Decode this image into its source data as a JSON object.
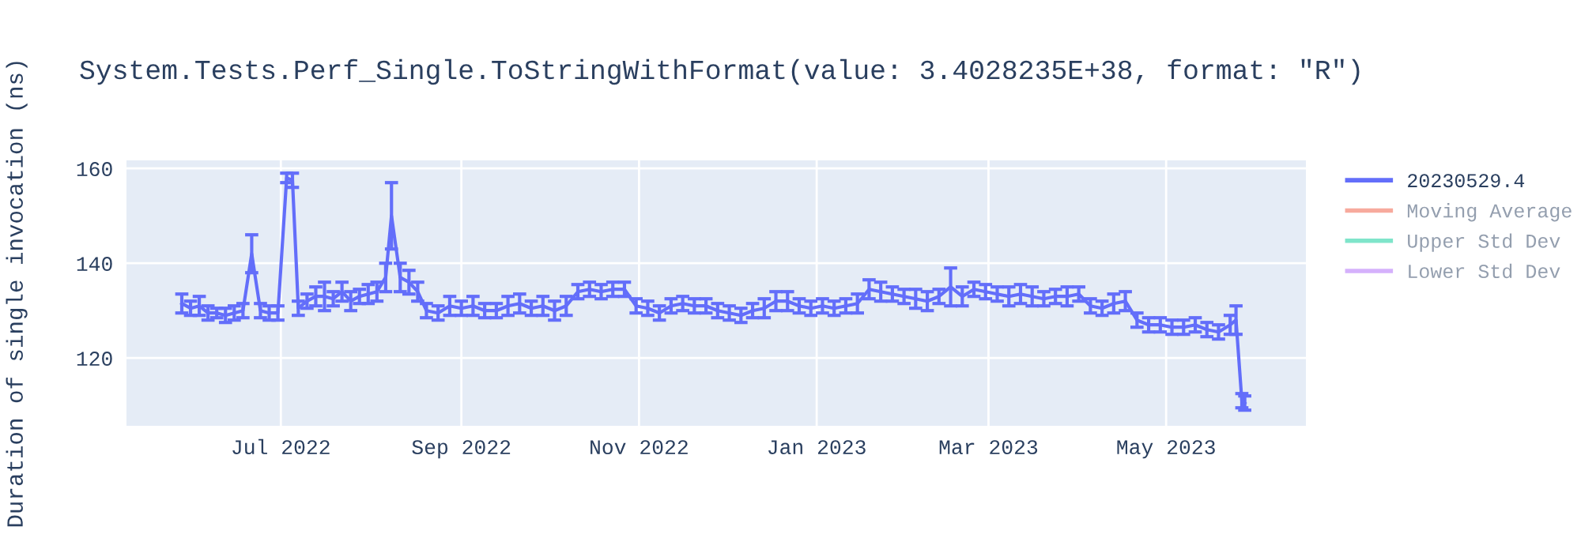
{
  "chart_data": {
    "type": "line",
    "title": "System.Tests.Perf_Single.ToStringWithFormat(value: 3.4028235E+38, format: \"R\")",
    "ylabel": "Duration of single invocation (ns)",
    "x": [
      "2022-05-28",
      "2022-05-31",
      "2022-06-03",
      "2022-06-06",
      "2022-06-09",
      "2022-06-12",
      "2022-06-15",
      "2022-06-18",
      "2022-06-21",
      "2022-06-24",
      "2022-06-27",
      "2022-06-30",
      "2022-07-03",
      "2022-07-05",
      "2022-07-07",
      "2022-07-10",
      "2022-07-13",
      "2022-07-16",
      "2022-07-19",
      "2022-07-22",
      "2022-07-25",
      "2022-07-28",
      "2022-07-31",
      "2022-08-03",
      "2022-08-06",
      "2022-08-08",
      "2022-08-11",
      "2022-08-14",
      "2022-08-17",
      "2022-08-20",
      "2022-08-24",
      "2022-08-28",
      "2022-09-01",
      "2022-09-05",
      "2022-09-09",
      "2022-09-13",
      "2022-09-17",
      "2022-09-21",
      "2022-09-25",
      "2022-09-29",
      "2022-10-03",
      "2022-10-07",
      "2022-10-11",
      "2022-10-15",
      "2022-10-19",
      "2022-10-23",
      "2022-10-27",
      "2022-10-31",
      "2022-11-04",
      "2022-11-08",
      "2022-11-12",
      "2022-11-16",
      "2022-11-20",
      "2022-11-24",
      "2022-11-28",
      "2022-12-02",
      "2022-12-06",
      "2022-12-10",
      "2022-12-14",
      "2022-12-18",
      "2022-12-22",
      "2022-12-26",
      "2022-12-30",
      "2023-01-03",
      "2023-01-07",
      "2023-01-11",
      "2023-01-15",
      "2023-01-19",
      "2023-01-23",
      "2023-01-27",
      "2023-01-31",
      "2023-02-04",
      "2023-02-08",
      "2023-02-12",
      "2023-02-16",
      "2023-02-20",
      "2023-02-24",
      "2023-02-28",
      "2023-03-04",
      "2023-03-08",
      "2023-03-12",
      "2023-03-16",
      "2023-03-20",
      "2023-03-24",
      "2023-03-28",
      "2023-04-01",
      "2023-04-05",
      "2023-04-09",
      "2023-04-13",
      "2023-04-17",
      "2023-04-21",
      "2023-04-25",
      "2023-04-29",
      "2023-05-03",
      "2023-05-07",
      "2023-05-11",
      "2023-05-15",
      "2023-05-19",
      "2023-05-23",
      "2023-05-25",
      "2023-05-27",
      "2023-05-28"
    ],
    "series": [
      {
        "name": "20230529.4",
        "color": "#636efa",
        "values": [
          131.5,
          130.5,
          131,
          129.5,
          129.5,
          129,
          129.5,
          130,
          142,
          130,
          129.5,
          129.5,
          158,
          157.5,
          130.5,
          132,
          133,
          133,
          132.5,
          134,
          132,
          133,
          133.5,
          134,
          137,
          150,
          137,
          136,
          134,
          130,
          129.5,
          131,
          130.5,
          131,
          130,
          130,
          131,
          131.5,
          130.5,
          131,
          130,
          131,
          134,
          134.5,
          134,
          134.5,
          134.5,
          131,
          130.5,
          129.5,
          131,
          131.5,
          131,
          131,
          130,
          129.5,
          129,
          130,
          130.5,
          132,
          132,
          131,
          130.5,
          131,
          130.5,
          131,
          131.5,
          134.5,
          134,
          133.5,
          133,
          132.5,
          132,
          133,
          135,
          133,
          134.5,
          134,
          133.5,
          133,
          133.5,
          133,
          132.5,
          133,
          133,
          133.5,
          131,
          130.5,
          131.5,
          132,
          128,
          127,
          127,
          126.5,
          126.5,
          127,
          126,
          125.5,
          127,
          128,
          111,
          110.5
        ],
        "errors": [
          2,
          1.5,
          2,
          1.5,
          1,
          1.5,
          1.5,
          1.5,
          4,
          1.5,
          1.5,
          1.5,
          1,
          1.5,
          1.5,
          1.5,
          2,
          3,
          1.5,
          2,
          2,
          1.5,
          2,
          2,
          3,
          7,
          3,
          2.5,
          2,
          1.5,
          1.5,
          2,
          1.5,
          2,
          1.5,
          1.5,
          2,
          2,
          1.5,
          2,
          2,
          2,
          1.5,
          1.5,
          1.5,
          1.5,
          1.5,
          1.5,
          1.5,
          1.5,
          1.5,
          1.5,
          1.5,
          1.5,
          1.5,
          1.5,
          1.5,
          1.5,
          2,
          2,
          2,
          1.5,
          1.5,
          1.5,
          1.5,
          1.5,
          2,
          2,
          2,
          1.5,
          1.5,
          2,
          2,
          1.5,
          4,
          2,
          1.5,
          1.5,
          1.5,
          2,
          2,
          2,
          1.5,
          1.5,
          2,
          1.5,
          1.5,
          1.5,
          2,
          2,
          1.5,
          1.5,
          1.5,
          1.5,
          1.5,
          1.5,
          1.5,
          1.5,
          2,
          3,
          1.5,
          1.5
        ]
      },
      {
        "name": "Moving Average",
        "color": "#ef553b",
        "values": [
          null,
          null,
          null,
          null,
          null,
          null,
          null,
          null,
          null,
          null,
          null,
          null,
          null,
          null,
          null,
          null,
          null,
          null,
          null,
          null,
          null,
          null,
          null,
          null,
          null,
          null,
          null,
          null,
          null,
          null,
          null,
          null,
          null,
          null,
          null,
          null,
          null,
          null,
          null,
          null,
          null,
          null,
          null,
          null,
          null,
          null,
          null,
          null,
          null,
          null,
          null,
          null,
          null,
          null,
          null,
          null,
          null,
          null,
          null,
          null,
          null,
          null,
          null,
          null,
          null,
          null,
          null,
          null,
          null,
          null,
          null,
          null,
          null,
          null,
          null,
          null,
          null,
          null,
          null,
          null,
          null,
          null,
          null,
          null,
          null,
          null,
          null,
          null,
          null,
          null,
          null,
          null,
          null,
          null,
          null,
          null,
          null,
          null,
          null,
          null,
          null,
          null
        ]
      },
      {
        "name": "Upper Std Dev",
        "color": "#00cc96",
        "values": [
          null,
          null,
          null,
          null,
          null,
          null,
          null,
          null,
          null,
          null,
          null,
          null,
          null,
          null,
          null,
          null,
          null,
          null,
          null,
          null,
          null,
          null,
          null,
          null,
          null,
          null,
          null,
          null,
          null,
          null,
          null,
          null,
          null,
          null,
          null,
          null,
          null,
          null,
          null,
          null,
          null,
          null,
          null,
          null,
          null,
          null,
          null,
          null,
          null,
          null,
          null,
          null,
          null,
          null,
          null,
          null,
          null,
          null,
          null,
          null,
          null,
          null,
          null,
          null,
          null,
          null,
          null,
          null,
          null,
          null,
          null,
          null,
          null,
          null,
          null,
          null,
          null,
          null,
          null,
          null,
          null,
          null,
          null,
          null,
          null,
          null,
          null,
          null,
          null,
          null,
          null,
          null,
          null,
          null,
          null,
          null,
          null,
          null,
          null,
          null,
          null,
          null
        ]
      },
      {
        "name": "Lower Std Dev",
        "color": "#ab63fa",
        "values": [
          null,
          null,
          null,
          null,
          null,
          null,
          null,
          null,
          null,
          null,
          null,
          null,
          null,
          null,
          null,
          null,
          null,
          null,
          null,
          null,
          null,
          null,
          null,
          null,
          null,
          null,
          null,
          null,
          null,
          null,
          null,
          null,
          null,
          null,
          null,
          null,
          null,
          null,
          null,
          null,
          null,
          null,
          null,
          null,
          null,
          null,
          null,
          null,
          null,
          null,
          null,
          null,
          null,
          null,
          null,
          null,
          null,
          null,
          null,
          null,
          null,
          null,
          null,
          null,
          null,
          null,
          null,
          null,
          null,
          null,
          null,
          null,
          null,
          null,
          null,
          null,
          null,
          null,
          null,
          null,
          null,
          null,
          null,
          null,
          null,
          null,
          null,
          null,
          null,
          null,
          null,
          null,
          null,
          null,
          null,
          null,
          null,
          null,
          null,
          null,
          null,
          null
        ]
      }
    ],
    "xlim": [
      "2022-05-09",
      "2023-06-18"
    ],
    "xticks": [
      {
        "value": "2022-07-01",
        "label": "Jul 2022"
      },
      {
        "value": "2022-09-01",
        "label": "Sep 2022"
      },
      {
        "value": "2022-11-01",
        "label": "Nov 2022"
      },
      {
        "value": "2023-01-01",
        "label": "Jan 2023"
      },
      {
        "value": "2023-03-01",
        "label": "Mar 2023"
      },
      {
        "value": "2023-05-01",
        "label": "May 2023"
      }
    ],
    "ylim": [
      105.7,
      161.7
    ],
    "yticks": [
      120,
      140,
      160
    ],
    "grid": true,
    "legend": "right"
  }
}
